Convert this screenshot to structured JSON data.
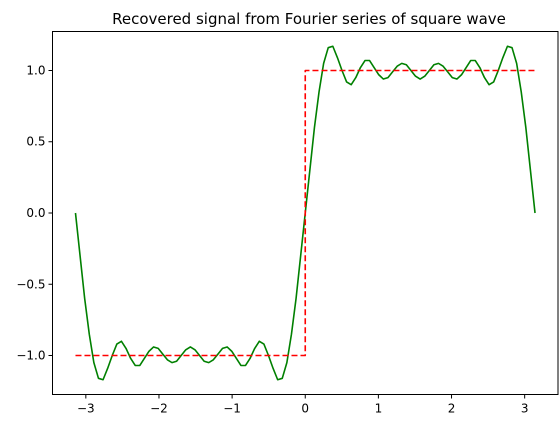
{
  "chart_data": {
    "type": "line",
    "title": "Recovered signal from Fourier series of square wave",
    "xlabel": "",
    "ylabel": "",
    "xlim": [
      -3.4558,
      3.4558
    ],
    "ylim": [
      -1.2736,
      1.2736
    ],
    "grid": false,
    "legend": "none",
    "x_ticks": [
      {
        "value": -3,
        "label": "−3"
      },
      {
        "value": -2,
        "label": "−2"
      },
      {
        "value": -1,
        "label": "−1"
      },
      {
        "value": 0,
        "label": "0"
      },
      {
        "value": 1,
        "label": "1"
      },
      {
        "value": 2,
        "label": "2"
      },
      {
        "value": 3,
        "label": "3"
      }
    ],
    "y_ticks": [
      {
        "value": -1.0,
        "label": "−1.0"
      },
      {
        "value": -0.5,
        "label": "−0.5"
      },
      {
        "value": 0.0,
        "label": "0.0"
      },
      {
        "value": 0.5,
        "label": "0.5"
      },
      {
        "value": 1.0,
        "label": "1.0"
      }
    ],
    "series": [
      {
        "style": "solid",
        "color": "#008000",
        "x": [
          -3.1416,
          -3.0788,
          -3.0159,
          -2.9531,
          -2.8903,
          -2.8274,
          -2.7646,
          -2.7018,
          -2.6389,
          -2.5761,
          -2.5133,
          -2.4504,
          -2.3876,
          -2.3248,
          -2.2619,
          -2.1991,
          -2.1363,
          -2.0735,
          -2.0106,
          -1.9478,
          -1.885,
          -1.8221,
          -1.7593,
          -1.6965,
          -1.6336,
          -1.5708,
          -1.508,
          -1.4451,
          -1.3823,
          -1.3195,
          -1.2566,
          -1.1938,
          -1.131,
          -1.0681,
          -1.0053,
          -0.9425,
          -0.8796,
          -0.8168,
          -0.754,
          -0.6912,
          -0.6283,
          -0.5655,
          -0.5027,
          -0.4398,
          -0.377,
          -0.3142,
          -0.2513,
          -0.1885,
          -0.1257,
          -0.0628,
          0,
          0.0628,
          0.1257,
          0.1885,
          0.2513,
          0.3142,
          0.377,
          0.4398,
          0.5027,
          0.5655,
          0.6283,
          0.6912,
          0.754,
          0.8168,
          0.8796,
          0.9425,
          1.0053,
          1.0681,
          1.131,
          1.1938,
          1.2566,
          1.3195,
          1.3823,
          1.4451,
          1.508,
          1.5708,
          1.6336,
          1.6965,
          1.7593,
          1.8221,
          1.885,
          1.9478,
          2.0106,
          2.0735,
          2.1363,
          2.1991,
          2.2619,
          2.3248,
          2.3876,
          2.4504,
          2.5133,
          2.5761,
          2.6389,
          2.7018,
          2.7646,
          2.8274,
          2.8903,
          2.9531,
          3.0159,
          3.0788,
          3.1416
        ],
        "y": [
          0,
          -0.3,
          -0.6,
          -0.85,
          -1.05,
          -1.16,
          -1.17,
          -1.09,
          -1.0,
          -0.92,
          -0.9,
          -0.95,
          -1.02,
          -1.07,
          -1.07,
          -1.02,
          -0.97,
          -0.94,
          -0.95,
          -0.99,
          -1.03,
          -1.05,
          -1.04,
          -1.0,
          -0.96,
          -0.94,
          -0.96,
          -1.0,
          -1.04,
          -1.05,
          -1.03,
          -0.99,
          -0.95,
          -0.94,
          -0.97,
          -1.02,
          -1.07,
          -1.07,
          -1.02,
          -0.95,
          -0.9,
          -0.92,
          -1.0,
          -1.09,
          -1.17,
          -1.16,
          -1.05,
          -0.85,
          -0.6,
          -0.3,
          0,
          0.3,
          0.6,
          0.85,
          1.05,
          1.16,
          1.17,
          1.09,
          1.0,
          0.92,
          0.9,
          0.95,
          1.02,
          1.07,
          1.07,
          1.02,
          0.97,
          0.94,
          0.95,
          0.99,
          1.03,
          1.05,
          1.04,
          1.0,
          0.96,
          0.94,
          0.96,
          1.0,
          1.04,
          1.05,
          1.03,
          0.99,
          0.95,
          0.94,
          0.97,
          1.02,
          1.07,
          1.07,
          1.02,
          0.95,
          0.9,
          0.92,
          1.0,
          1.09,
          1.17,
          1.16,
          1.05,
          0.85,
          0.6,
          0.3,
          0
        ]
      },
      {
        "style": "dashed",
        "color": "#ff0000",
        "x": [
          -3.1416,
          0,
          0,
          3.1416
        ],
        "y": [
          -1,
          -1,
          1,
          1
        ]
      }
    ]
  }
}
